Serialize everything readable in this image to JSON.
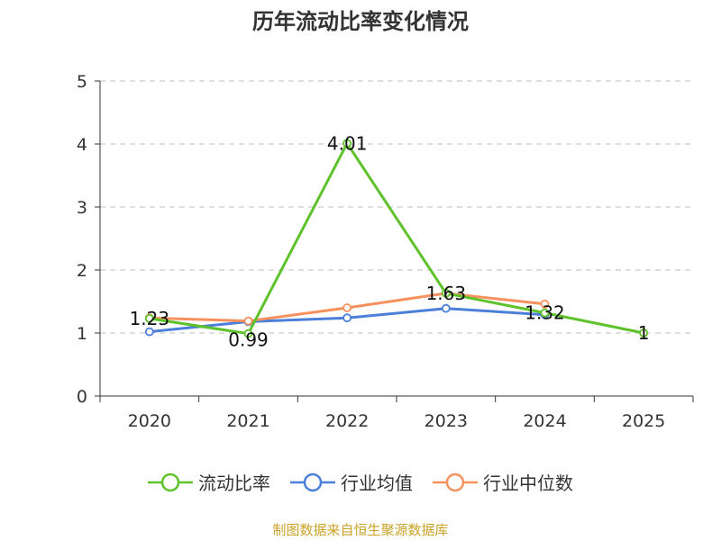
{
  "title": "历年流动比率变化情况",
  "source": "制图数据来自恒生聚源数据库",
  "colors": {
    "current_ratio": "#5ec22b",
    "industry_avg": "#4c7fda",
    "industry_median": "#f6915e",
    "grid": "#cccccc",
    "axis": "#333333"
  },
  "chart_data": {
    "type": "line",
    "title": "历年流动比率变化情况",
    "xlabel": "",
    "ylabel": "",
    "categories": [
      "2020",
      "2021",
      "2022",
      "2023",
      "2024",
      "2025"
    ],
    "ylim": [
      0,
      5
    ],
    "yticks": [
      "0",
      "1",
      "2",
      "3",
      "4",
      "5"
    ],
    "grid": true,
    "legend_position": "bottom",
    "series": [
      {
        "name": "流动比率",
        "key": "current_ratio",
        "values": [
          1.23,
          0.99,
          4.01,
          1.63,
          1.32,
          1
        ],
        "labels": [
          "1.23",
          "0.99",
          "4.01",
          "1.63",
          "1.32",
          "1"
        ]
      },
      {
        "name": "行业均值",
        "key": "industry_avg",
        "values": [
          1.02,
          1.18,
          1.24,
          1.39,
          1.29,
          null
        ]
      },
      {
        "name": "行业中位数",
        "key": "industry_median",
        "values": [
          1.24,
          1.19,
          1.4,
          1.63,
          1.46,
          null
        ]
      }
    ]
  }
}
